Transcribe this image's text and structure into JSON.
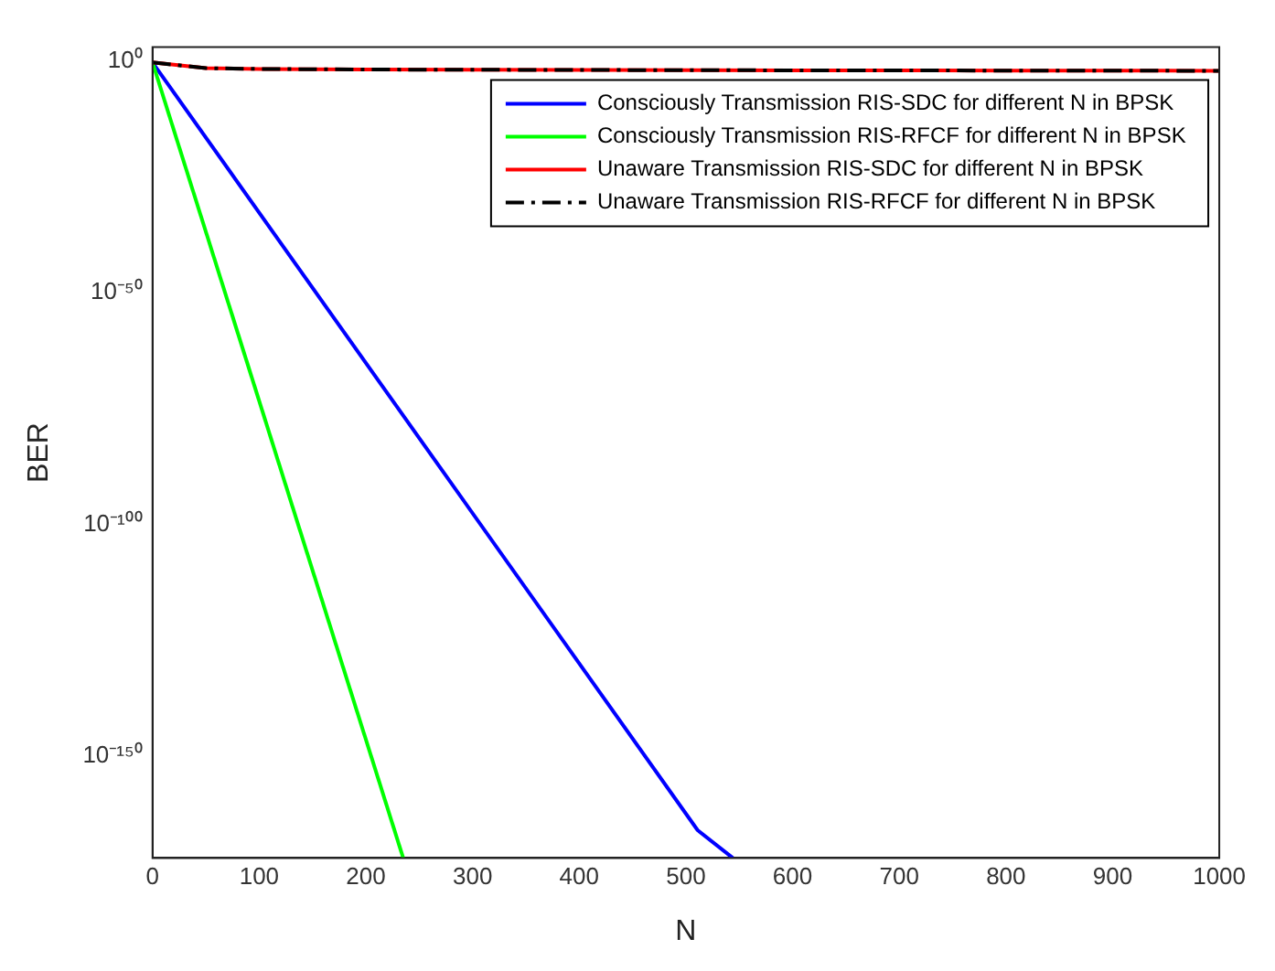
{
  "chart_data": {
    "type": "line",
    "xlabel": "N",
    "ylabel": "BER",
    "log": "y",
    "grid": false,
    "legend": "top right",
    "marker": "none",
    "xlim": [
      0,
      1000
    ],
    "xticks": [
      0,
      100,
      200,
      300,
      400,
      500,
      600,
      700,
      800,
      900,
      1000
    ],
    "ylim": [
      1e-172,
      1000.0
    ],
    "yticks": [
      {
        "value": 1,
        "label": "10⁰"
      },
      {
        "value": 1e-50,
        "label": "10⁻⁵⁰"
      },
      {
        "value": 1e-100,
        "label": "10⁻¹⁰⁰"
      },
      {
        "value": 1e-150,
        "label": "10⁻¹⁵⁰"
      }
    ],
    "series": [
      {
        "name": "Consciously Transmission RIS-SDC for different N in BPSK",
        "color": "#0000ff",
        "x": [
          0,
          511,
          544
        ],
        "values": [
          0.5,
          1e-166,
          1e-172
        ]
      },
      {
        "name": "Consciously Transmission RIS-RFCF for different N in BPSK",
        "color": "#00ff00",
        "x": [
          0,
          235
        ],
        "values": [
          0.5,
          1e-172
        ]
      },
      {
        "name": "Unaware Transmission RIS-SDC for different N in BPSK",
        "color": "#ff0000",
        "x": [
          0,
          50,
          100,
          200,
          400,
          600,
          800,
          1000
        ],
        "values": [
          0.5,
          0.03,
          0.02,
          0.015,
          0.012,
          0.01,
          0.009,
          0.008
        ]
      },
      {
        "name": "Unaware Transmission RIS-RFCF for different N in BPSK",
        "color": "#000000",
        "line_style": "dashed",
        "x": [
          0,
          50,
          100,
          200,
          400,
          600,
          800,
          1000
        ],
        "values": [
          0.5,
          0.03,
          0.02,
          0.015,
          0.012,
          0.01,
          0.009,
          0.008
        ]
      }
    ]
  }
}
